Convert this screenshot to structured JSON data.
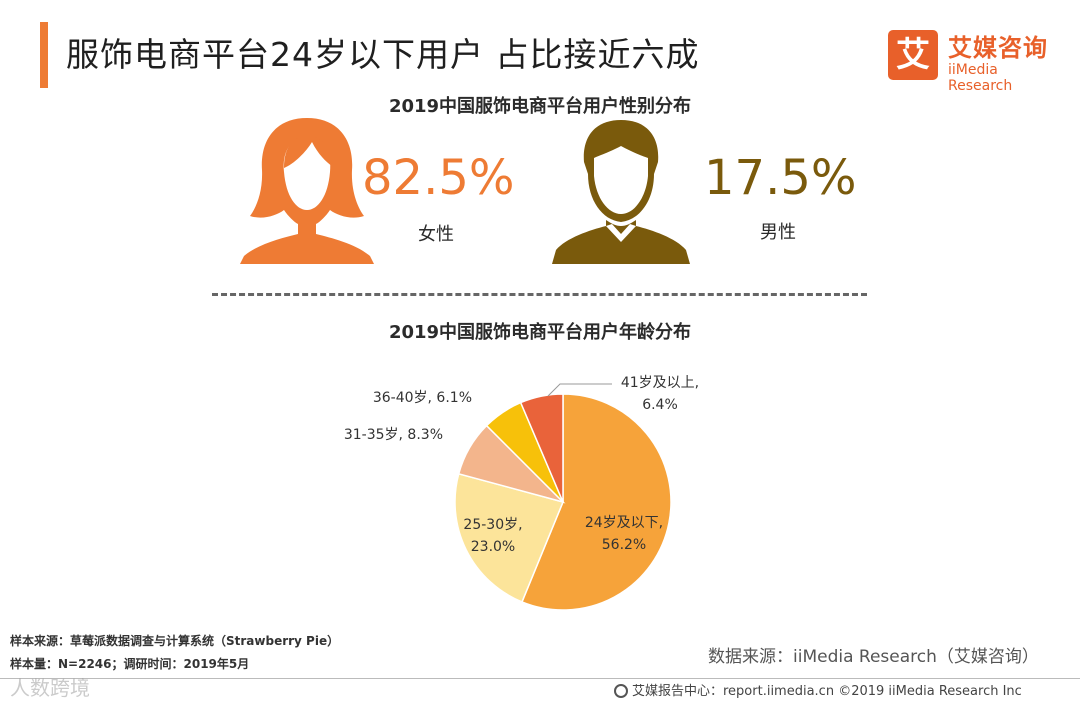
{
  "header": {
    "title": "服饰电商平台24岁以下用户 占比接近六成",
    "logo_char": "艾",
    "logo_cn": "艾媒咨询",
    "logo_en": "iiMedia Research"
  },
  "gender": {
    "subtitle": "2019中国服饰电商平台用户性别分布",
    "female": {
      "pct": "82.5%",
      "label": "女性",
      "color": "#ee7b34"
    },
    "male": {
      "pct": "17.5%",
      "label": "男性",
      "color": "#7a5a0c"
    }
  },
  "footer": {
    "sample_source": "样本来源：草莓派数据调查与计算系统（Strawberry  Pie）",
    "sample_size": "样本量：N=2246；调研时间：2019年5月",
    "data_source": "数据来源：iiMedia Research（艾媒咨询）",
    "center": "艾媒报告中心：report.iimedia.cn  ©2019  iiMedia Research  Inc",
    "watermark": "人数跨境"
  },
  "chart_data": [
    {
      "type": "pie",
      "title": "2019中国服饰电商平台用户性别分布",
      "categories": [
        "女性",
        "男性"
      ],
      "values": [
        82.5,
        17.5
      ]
    },
    {
      "type": "pie",
      "title": "2019中国服饰电商平台用户年龄分布",
      "slices": [
        {
          "label_lines": [
            "24岁及以下,",
            "56.2%"
          ],
          "category": "24岁及以下",
          "value": 56.2,
          "color": "#f6a33a"
        },
        {
          "label_lines": [
            "25-30岁,",
            "23.0%"
          ],
          "category": "25-30岁",
          "value": 23.0,
          "color": "#fce49a"
        },
        {
          "label_lines": [
            "31-35岁, 8.3%"
          ],
          "category": "31-35岁",
          "value": 8.3,
          "color": "#f3b58c"
        },
        {
          "label_lines": [
            "36-40岁, 6.1%"
          ],
          "category": "36-40岁",
          "value": 6.1,
          "color": "#f7c10a"
        },
        {
          "label_lines": [
            "41岁及以上,",
            "6.4%"
          ],
          "category": "41岁及以上",
          "value": 6.4,
          "color": "#e9633a"
        }
      ]
    }
  ]
}
